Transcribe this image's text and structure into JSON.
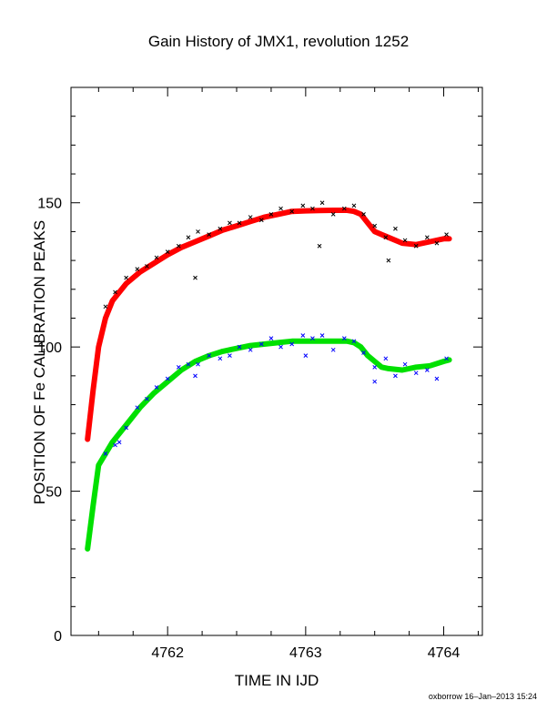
{
  "chart_data": {
    "type": "scatter",
    "title": "Gain History of JMX1, revolution 1252",
    "xlabel": "TIME IN IJD",
    "ylabel": "POSITION OF Fe CALIBRATION PEAKS",
    "xlim": [
      4761.3,
      4764.28
    ],
    "ylim": [
      0,
      190
    ],
    "x_ticks": [
      4762,
      4763,
      4764
    ],
    "y_ticks": [
      0,
      50,
      100,
      150
    ],
    "grid": false,
    "series": [
      {
        "color": "#ff0000",
        "marker": "line",
        "x": [
          4761.42,
          4761.46,
          4761.5,
          4761.55,
          4761.6,
          4761.7,
          4761.8,
          4761.9,
          4762.0,
          4762.1,
          4762.2,
          4762.3,
          4762.4,
          4762.5,
          4762.6,
          4762.7,
          4762.8,
          4762.9,
          4763.0,
          4763.1,
          4763.2,
          4763.3,
          4763.35,
          4763.4,
          4763.45,
          4763.5,
          4763.55,
          4763.6,
          4763.7,
          4763.8,
          4763.9,
          4764.0,
          4764.04
        ],
        "y": [
          68,
          85,
          100,
          110,
          116,
          122,
          126,
          129,
          132,
          134.5,
          136.5,
          138.5,
          140.5,
          142,
          143.5,
          145,
          146,
          147,
          147.2,
          147.3,
          147.4,
          147.4,
          147,
          146,
          143,
          140,
          139,
          138,
          136,
          135.5,
          136.5,
          137.5,
          137.5
        ]
      },
      {
        "color": "#000000",
        "marker": "x",
        "x": [
          4761.55,
          4761.62,
          4761.7,
          4761.78,
          4761.85,
          4761.92,
          4762.0,
          4762.08,
          4762.15,
          4762.22,
          4762.3,
          4762.38,
          4762.45,
          4762.52,
          4762.6,
          4762.68,
          4762.75,
          4762.82,
          4762.9,
          4762.98,
          4763.05,
          4763.12,
          4763.2,
          4763.28,
          4763.35,
          4763.42,
          4763.5,
          4763.58,
          4763.65,
          4763.72,
          4763.8,
          4763.88,
          4763.95,
          4764.02,
          4762.2,
          4763.1,
          4763.6
        ],
        "y": [
          114,
          119,
          124,
          127,
          128,
          131,
          133,
          135,
          138,
          140,
          139,
          141,
          143,
          143,
          145,
          144,
          146,
          148,
          147,
          149,
          148,
          150,
          146,
          148,
          149,
          146,
          142,
          138,
          141,
          137,
          135,
          138,
          136,
          139,
          124,
          135,
          130
        ]
      },
      {
        "color": "#00e000",
        "marker": "line",
        "x": [
          4761.42,
          4761.46,
          4761.5,
          4761.55,
          4761.6,
          4761.7,
          4761.8,
          4761.9,
          4762.0,
          4762.1,
          4762.2,
          4762.3,
          4762.4,
          4762.5,
          4762.6,
          4762.7,
          4762.8,
          4762.9,
          4763.0,
          4763.1,
          4763.2,
          4763.3,
          4763.35,
          4763.4,
          4763.45,
          4763.5,
          4763.55,
          4763.6,
          4763.7,
          4763.8,
          4763.9,
          4764.0,
          4764.04
        ],
        "y": [
          30,
          45,
          59,
          63,
          67,
          73,
          79,
          84,
          88,
          92,
          95,
          97,
          98.5,
          99.5,
          100.5,
          101,
          101.5,
          102,
          102,
          102,
          102,
          102,
          101.5,
          100,
          97,
          95,
          93,
          92.5,
          92,
          93,
          93.5,
          95,
          95.5
        ]
      },
      {
        "color": "#0000ff",
        "marker": "x",
        "x": [
          4761.55,
          4761.62,
          4761.7,
          4761.78,
          4761.85,
          4761.92,
          4762.0,
          4762.08,
          4762.15,
          4762.22,
          4762.3,
          4762.38,
          4762.45,
          4762.52,
          4762.6,
          4762.68,
          4762.75,
          4762.82,
          4762.9,
          4762.98,
          4763.05,
          4763.12,
          4763.2,
          4763.28,
          4763.35,
          4763.42,
          4763.5,
          4763.58,
          4763.65,
          4763.72,
          4763.8,
          4763.88,
          4763.95,
          4764.02,
          4761.65,
          4762.2,
          4763.0,
          4763.5
        ],
        "y": [
          63,
          66,
          72,
          79,
          82,
          86,
          89,
          93,
          94,
          94,
          97,
          96,
          97,
          100,
          99,
          101,
          103,
          100,
          101,
          104,
          103,
          104,
          99,
          103,
          102,
          98,
          93,
          96,
          90,
          94,
          91,
          92,
          89,
          96,
          67,
          90,
          97,
          88
        ]
      }
    ]
  },
  "footer": "oxborrow 16–Jan–2013 15:24"
}
